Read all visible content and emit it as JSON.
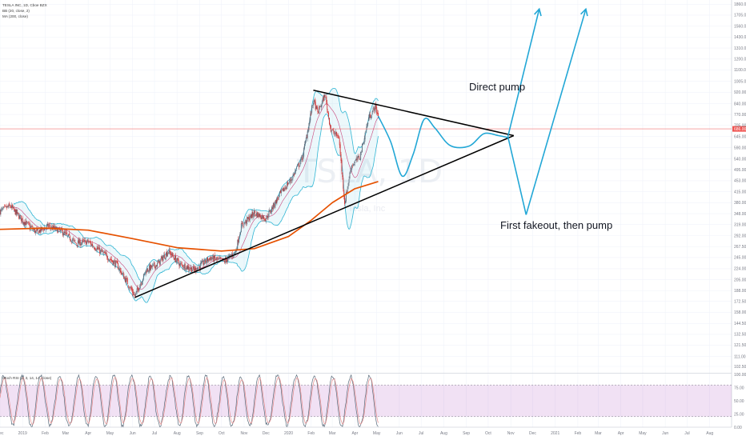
{
  "chart_data": {
    "type": "candlestick",
    "symbol_line": "TESLA INC, 1D, Cboe BZX",
    "indicators": [
      {
        "label": "BB (20, close, 2)",
        "color": "#2fb5d3"
      },
      {
        "label": "MA (200, close)",
        "color": "#e65100"
      }
    ],
    "watermark": "TSLA, 1D",
    "watermark_sub": "Tesla, Inc",
    "price_axis": {
      "scale": "log",
      "ticks": [
        102.5,
        111,
        121.5,
        132.5,
        144.5,
        158,
        172.5,
        188,
        205,
        224,
        245,
        267.5,
        292,
        319,
        348,
        380,
        415,
        453,
        495,
        540,
        590,
        645,
        705,
        770,
        840,
        920,
        1005,
        1100,
        1200,
        1310,
        1430,
        1560,
        1705,
        1860
      ],
      "tick_labels": [
        "102.50",
        "111.00",
        "121.50",
        "132.50",
        "144.50",
        "158.00",
        "172.50",
        "188.00",
        "205.00",
        "224.00",
        "245.00",
        "267.50",
        "292.00",
        "319.00",
        "348.00",
        "380.00",
        "415.00",
        "453.00",
        "495.00",
        "540.00",
        "590.00",
        "645.00",
        "705.00",
        "770.00",
        "840.00",
        "920.00",
        "1005.00",
        "1100.00",
        "1200.00",
        "1310.00",
        "1430.00",
        "1560.00",
        "1705.00",
        "1860.00"
      ],
      "range": [
        98,
        1900
      ]
    },
    "last_price": {
      "value": 686,
      "label": "686.00",
      "color": "#ef5350"
    },
    "time_axis": {
      "labels": [
        "Dec",
        "2019",
        "Feb",
        "Mar",
        "Apr",
        "May",
        "Jun",
        "Jul",
        "Aug",
        "Sep",
        "Oct",
        "Nov",
        "Dec",
        "2020",
        "Feb",
        "Mar",
        "Apr",
        "May",
        "Jun",
        "Jul",
        "Aug",
        "Sep",
        "Oct",
        "Nov",
        "Dec",
        "2021",
        "Feb",
        "Mar",
        "Apr",
        "May",
        "Jun",
        "Jul",
        "Aug"
      ],
      "range": [
        "2018-12-01",
        "2021-08-31"
      ]
    },
    "price_path": [
      [
        "2018-12-01",
        355
      ],
      [
        "2018-12-15",
        370
      ],
      [
        "2019-01-01",
        330
      ],
      [
        "2019-01-20",
        300
      ],
      [
        "2019-02-05",
        315
      ],
      [
        "2019-02-25",
        300
      ],
      [
        "2019-03-15",
        275
      ],
      [
        "2019-04-01",
        278
      ],
      [
        "2019-04-20",
        255
      ],
      [
        "2019-05-10",
        232
      ],
      [
        "2019-05-25",
        200
      ],
      [
        "2019-06-04",
        180
      ],
      [
        "2019-06-20",
        222
      ],
      [
        "2019-07-05",
        232
      ],
      [
        "2019-07-20",
        258
      ],
      [
        "2019-08-05",
        232
      ],
      [
        "2019-08-25",
        222
      ],
      [
        "2019-09-15",
        244
      ],
      [
        "2019-10-05",
        238
      ],
      [
        "2019-10-20",
        255
      ],
      [
        "2019-10-28",
        315
      ],
      [
        "2019-11-15",
        350
      ],
      [
        "2019-12-01",
        335
      ],
      [
        "2019-12-20",
        405
      ],
      [
        "2020-01-05",
        460
      ],
      [
        "2020-01-20",
        545
      ],
      [
        "2020-02-04",
        860
      ],
      [
        "2020-02-10",
        780
      ],
      [
        "2020-02-20",
        900
      ],
      [
        "2020-02-28",
        680
      ],
      [
        "2020-03-10",
        640
      ],
      [
        "2020-03-18",
        380
      ],
      [
        "2020-03-27",
        510
      ],
      [
        "2020-04-08",
        550
      ],
      [
        "2020-04-20",
        750
      ],
      [
        "2020-04-29",
        820
      ],
      [
        "2020-05-03",
        760
      ]
    ],
    "ma200_path": [
      [
        "2018-12-01",
        307
      ],
      [
        "2019-02-01",
        310
      ],
      [
        "2019-04-01",
        305
      ],
      [
        "2019-06-01",
        285
      ],
      [
        "2019-08-01",
        265
      ],
      [
        "2019-10-01",
        258
      ],
      [
        "2019-11-15",
        263
      ],
      [
        "2020-01-01",
        290
      ],
      [
        "2020-02-01",
        330
      ],
      [
        "2020-03-01",
        380
      ],
      [
        "2020-04-01",
        425
      ],
      [
        "2020-05-03",
        450
      ]
    ],
    "stoch_rsi": {
      "label": "Stoch RSI (3, 3, 14, 14, close)",
      "levels": [
        20,
        80
      ],
      "ticks": [
        0,
        25,
        50,
        75,
        100
      ],
      "tick_labels": [
        "0.00",
        "25.00",
        "50.00",
        "75.00",
        "100.00"
      ],
      "range": [
        0,
        100
      ]
    },
    "drawings": {
      "support_line": [
        [
          "2019-06-04",
          178
        ],
        [
          "2020-11-05",
          650
        ]
      ],
      "resistance_line": [
        [
          "2020-02-04",
          935
        ],
        [
          "2020-11-05",
          650
        ]
      ],
      "projection_wave": [
        [
          "2020-05-03",
          760
        ],
        [
          "2020-05-20",
          620
        ],
        [
          "2020-06-05",
          470
        ],
        [
          "2020-06-20",
          560
        ],
        [
          "2020-07-05",
          740
        ],
        [
          "2020-07-20",
          690
        ],
        [
          "2020-08-10",
          600
        ],
        [
          "2020-09-05",
          598
        ],
        [
          "2020-09-25",
          660
        ],
        [
          "2020-10-15",
          650
        ],
        [
          "2020-10-28",
          640
        ]
      ],
      "direct_pump_arrows": [
        [
          [
            "2020-10-28",
            645
          ],
          [
            "2020-12-10",
            1790
          ]
        ],
        [
          [
            "2020-12-01",
            590
          ],
          [
            "2021-02-12",
            1790
          ]
        ]
      ],
      "fakeout_path": [
        [
          "2020-10-28",
          645
        ],
        [
          "2020-11-22",
          345
        ]
      ],
      "annotations": [
        "Direct pump",
        "First fakeout, then pump"
      ]
    }
  }
}
